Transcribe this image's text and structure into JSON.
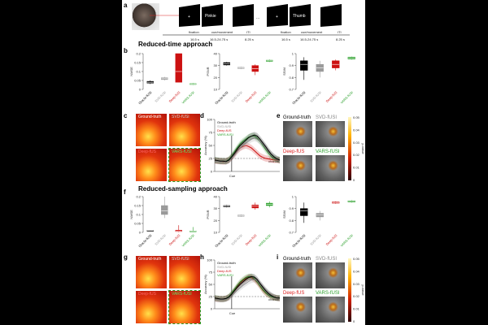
{
  "panel_letters": {
    "a": "a",
    "b": "b",
    "c": "c",
    "d": "d",
    "e": "e",
    "f": "f",
    "g": "g",
    "h": "h",
    "i": "i"
  },
  "sections": {
    "reduced_time": "Reduced-time approach",
    "reduced_sampling": "Reduced-sampling approach"
  },
  "timeline": {
    "screens": [
      "",
      "Pinkie",
      "",
      "",
      "Thumb",
      ""
    ],
    "phase_labels": [
      "fixation",
      "cue/movement",
      "ITI",
      "fixation",
      "cue/movement",
      "ITI"
    ],
    "durations": [
      "16.5 s",
      "16.5-24.75 s",
      "8.25 s",
      "16.5 s",
      "16.5-24.75 s",
      "8.25 s"
    ],
    "ellipsis": "..."
  },
  "methods": [
    "Oracle-fUSI",
    "SVD-fUSI",
    "Deep-fUS",
    "VARS-fUSI"
  ],
  "colors": {
    "oracle": "#000000",
    "svd": "#9a9a9a",
    "deep": "#cc1111",
    "vars": "#2ca02c"
  },
  "metric_labels": {
    "nmse": "NMSE",
    "psnr": "PSNR",
    "ssim": "SSIM"
  },
  "heat_labels": [
    "Ground-truth",
    "SVD-fUSI",
    "Deep-fUS",
    "VARS-fUSI"
  ],
  "accuracy": {
    "ylabel": "Accuracy (%)",
    "yticks": [
      "100",
      "75",
      "50",
      "25",
      "0"
    ],
    "cue": "Cue",
    "chance": "chance",
    "legend": [
      "Ground-truth",
      "SVD-fUSI",
      "Deep-fUS",
      "VARS-fUSI"
    ]
  },
  "pvalue": {
    "label": "p-value",
    "ticks": [
      "0.05",
      "0.04",
      "0.03",
      "0.02",
      "0.01",
      "0"
    ]
  },
  "chart_data": [
    {
      "panel": "b-NMSE",
      "type": "box",
      "ylabel": "NMSE",
      "categories": [
        "Oracle-fUSI",
        "SVD-fUSI",
        "Deep-fUS",
        "VARS-fUSI"
      ],
      "ylim": [
        0,
        0.2
      ],
      "yticks": [
        "0.2",
        "0.15",
        "0.1",
        "0.05",
        "0"
      ],
      "boxes": [
        {
          "q1": 0.035,
          "med": 0.04,
          "q3": 0.045,
          "lo": 0.03,
          "hi": 0.05
        },
        {
          "q1": 0.055,
          "med": 0.06,
          "q3": 0.065,
          "lo": 0.05,
          "hi": 0.07
        },
        {
          "q1": 0.04,
          "med": 0.1,
          "q3": 0.2,
          "lo": 0.04,
          "hi": 0.2
        },
        {
          "q1": 0.028,
          "med": 0.03,
          "q3": 0.032,
          "lo": 0.025,
          "hi": 0.035
        }
      ]
    },
    {
      "panel": "b-PSNR",
      "type": "box",
      "ylabel": "PSNR",
      "categories": [
        "Oracle-fUSI",
        "SVD-fUSI",
        "Deep-fUS",
        "VARS-fUSI"
      ],
      "ylim": [
        10,
        40
      ],
      "yticks": [
        "40",
        "30",
        "20",
        "10"
      ],
      "boxes": [
        {
          "q1": 30.5,
          "med": 31.5,
          "q3": 32.5,
          "lo": 30,
          "hi": 33
        },
        {
          "q1": 27.5,
          "med": 28,
          "q3": 28.5,
          "lo": 27,
          "hi": 29
        },
        {
          "q1": 25,
          "med": 27.5,
          "q3": 30,
          "lo": 22,
          "hi": 31
        },
        {
          "q1": 33.5,
          "med": 34,
          "q3": 34.5,
          "lo": 33,
          "hi": 35
        }
      ]
    },
    {
      "panel": "b-SSIM",
      "type": "box",
      "ylabel": "SSIM",
      "categories": [
        "Oracle-fUSI",
        "SVD-fUSI",
        "Deep-fUS",
        "VARS-fUSI"
      ],
      "ylim": [
        0.7,
        1
      ],
      "yticks": [
        "1",
        "0.9",
        "0.8",
        "0.7"
      ],
      "boxes": [
        {
          "q1": 0.86,
          "med": 0.91,
          "q3": 0.94,
          "lo": 0.78,
          "hi": 0.97
        },
        {
          "q1": 0.85,
          "med": 0.88,
          "q3": 0.91,
          "lo": 0.8,
          "hi": 0.94
        },
        {
          "q1": 0.88,
          "med": 0.91,
          "q3": 0.94,
          "lo": 0.86,
          "hi": 0.95
        },
        {
          "q1": 0.955,
          "med": 0.962,
          "q3": 0.97,
          "lo": 0.95,
          "hi": 0.975
        }
      ]
    },
    {
      "panel": "f-NMSE",
      "type": "box",
      "ylabel": "NMSE",
      "categories": [
        "Oracle-fUSI",
        "SVD-fUSI",
        "Deep-fUS",
        "VARS-fUSI"
      ],
      "ylim": [
        0,
        0.2
      ],
      "yticks": [
        "0.2",
        "0.15",
        "0.1",
        "0.05",
        "0"
      ],
      "boxes": [
        {
          "q1": 0.009,
          "med": 0.01,
          "q3": 0.011,
          "lo": 0.008,
          "hi": 0.012
        },
        {
          "q1": 0.1,
          "med": 0.12,
          "q3": 0.15,
          "lo": 0.08,
          "hi": 0.2
        },
        {
          "q1": 0.005,
          "med": 0.008,
          "q3": 0.012,
          "lo": 0.002,
          "hi": 0.04
        },
        {
          "q1": 0.004,
          "med": 0.006,
          "q3": 0.008,
          "lo": 0.002,
          "hi": 0.03
        }
      ]
    },
    {
      "panel": "f-PSNR",
      "type": "box",
      "ylabel": "PSNR",
      "categories": [
        "Oracle-fUSI",
        "SVD-fUSI",
        "Deep-fUS",
        "VARS-fUSI"
      ],
      "ylim": [
        10,
        40
      ],
      "yticks": [
        "40",
        "30",
        "20",
        "10"
      ],
      "boxes": [
        {
          "q1": 31.5,
          "med": 32,
          "q3": 32.5,
          "lo": 31,
          "hi": 33
        },
        {
          "q1": 23.5,
          "med": 24,
          "q3": 24.5,
          "lo": 23,
          "hi": 25
        },
        {
          "q1": 30.5,
          "med": 32,
          "q3": 33,
          "lo": 29,
          "hi": 35
        },
        {
          "q1": 32.5,
          "med": 33.5,
          "q3": 34.5,
          "lo": 31,
          "hi": 36
        }
      ]
    },
    {
      "panel": "f-SSIM",
      "type": "box",
      "ylabel": "SSIM",
      "categories": [
        "Oracle-fUSI",
        "SVD-fUSI",
        "Deep-fUS",
        "VARS-fUSI"
      ],
      "ylim": [
        0.7,
        1
      ],
      "yticks": [
        "1",
        "0.9",
        "0.8",
        "0.7"
      ],
      "boxes": [
        {
          "q1": 0.84,
          "med": 0.88,
          "q3": 0.9,
          "lo": 0.78,
          "hi": 0.95
        },
        {
          "q1": 0.83,
          "med": 0.845,
          "q3": 0.86,
          "lo": 0.8,
          "hi": 0.88
        },
        {
          "q1": 0.945,
          "med": 0.95,
          "q3": 0.955,
          "lo": 0.94,
          "hi": 0.96
        },
        {
          "q1": 0.955,
          "med": 0.96,
          "q3": 0.965,
          "lo": 0.95,
          "hi": 0.97
        }
      ]
    },
    {
      "panel": "d",
      "type": "line",
      "ylabel": "Accuracy (%)",
      "ylim": [
        0,
        100
      ],
      "x": [
        0,
        1,
        2,
        3,
        4,
        5,
        6,
        7,
        8,
        9,
        10,
        11,
        12,
        13,
        14,
        15,
        16,
        17,
        18,
        19,
        20,
        21,
        22,
        23
      ],
      "series": [
        {
          "name": "Ground-truth",
          "values": [
            22,
            21,
            20,
            20,
            19,
            22,
            28,
            35,
            43,
            50,
            55,
            60,
            65,
            68,
            70,
            68,
            62,
            55,
            48,
            40,
            33,
            28,
            24,
            22
          ]
        },
        {
          "name": "SVD-fUSI",
          "values": [
            20,
            20,
            19,
            20,
            20,
            21,
            26,
            32,
            39,
            45,
            50,
            54,
            58,
            62,
            64,
            62,
            58,
            52,
            45,
            38,
            32,
            27,
            23,
            21
          ]
        },
        {
          "name": "Deep-fUS",
          "values": [
            21,
            20,
            20,
            19,
            20,
            22,
            27,
            33,
            40,
            45,
            48,
            50,
            48,
            45,
            40,
            35,
            30,
            27,
            25,
            24,
            23,
            22,
            22,
            21
          ]
        },
        {
          "name": "VARS-fUSI",
          "values": [
            22,
            21,
            20,
            20,
            20,
            23,
            30,
            38,
            46,
            53,
            58,
            62,
            66,
            68,
            68,
            64,
            58,
            50,
            42,
            35,
            29,
            25,
            23,
            22
          ]
        }
      ]
    },
    {
      "panel": "h",
      "type": "line",
      "ylabel": "Accuracy (%)",
      "ylim": [
        0,
        100
      ],
      "x": [
        0,
        1,
        2,
        3,
        4,
        5,
        6,
        7,
        8,
        9,
        10,
        11,
        12,
        13,
        14,
        15,
        16,
        17,
        18,
        19,
        20,
        21,
        22,
        23
      ],
      "series": [
        {
          "name": "Ground-truth",
          "values": [
            22,
            21,
            20,
            20,
            21,
            24,
            30,
            37,
            44,
            50,
            55,
            60,
            64,
            66,
            65,
            60,
            52,
            44,
            37,
            31,
            27,
            24,
            22,
            22
          ]
        },
        {
          "name": "SVD-fUSI",
          "values": [
            20,
            19,
            19,
            19,
            20,
            22,
            26,
            32,
            38,
            43,
            48,
            52,
            56,
            59,
            60,
            58,
            52,
            46,
            39,
            33,
            28,
            24,
            22,
            21
          ]
        },
        {
          "name": "Deep-fUS",
          "values": [
            21,
            20,
            20,
            20,
            21,
            24,
            30,
            38,
            46,
            53,
            58,
            62,
            65,
            64,
            60,
            54,
            46,
            38,
            32,
            28,
            25,
            23,
            22,
            21
          ]
        },
        {
          "name": "VARS-fUSI",
          "values": [
            22,
            21,
            20,
            20,
            21,
            25,
            32,
            40,
            48,
            55,
            60,
            64,
            66,
            66,
            62,
            55,
            47,
            39,
            33,
            28,
            25,
            23,
            22,
            22
          ]
        }
      ]
    }
  ]
}
